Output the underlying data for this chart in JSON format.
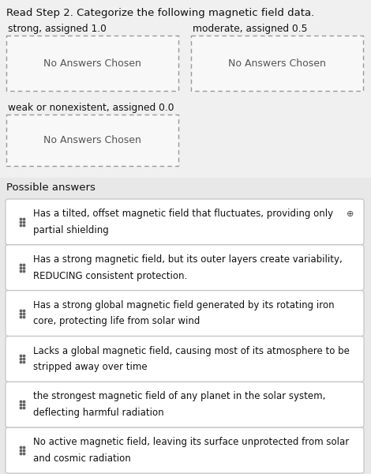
{
  "title": "Read Step 2. Categorize the following magnetic field data.",
  "title_fontsize": 9.5,
  "bg_color": "#f0f0f0",
  "top_bg": "#f0f0f0",
  "no_answer_text": "No Answers Chosen",
  "possible_answers_label": "Possible answers",
  "answers": [
    "Has a tilted, offset magnetic field that fluctuates, providing only\npartial shielding",
    "Has a strong magnetic field, but its outer layers create variability,\nREDUCING consistent protection.",
    "Has a strong global magnetic field generated by its rotating iron\ncore, protecting life from solar wind",
    "Lacks a global magnetic field, causing most of its atmosphere to be\nstripped away over time",
    "the strongest magnetic field of any planet in the solar system,\ndeflecting harmful radiation",
    "No active magnetic field, leaving its surface unprotected from solar\nand cosmic radiation"
  ],
  "answer_box_color": "#ffffff",
  "answer_border_color": "#c0c0c0",
  "dashed_border_color": "#999999",
  "dot_color": "#666666",
  "text_color": "#111111",
  "label_color": "#111111",
  "possible_bg": "#e8e8e8",
  "cat_box_bg": "#f8f8f8",
  "answer_text_fontsize": 8.5,
  "cat_label_fontsize": 8.8,
  "possible_label_fontsize": 9.5
}
